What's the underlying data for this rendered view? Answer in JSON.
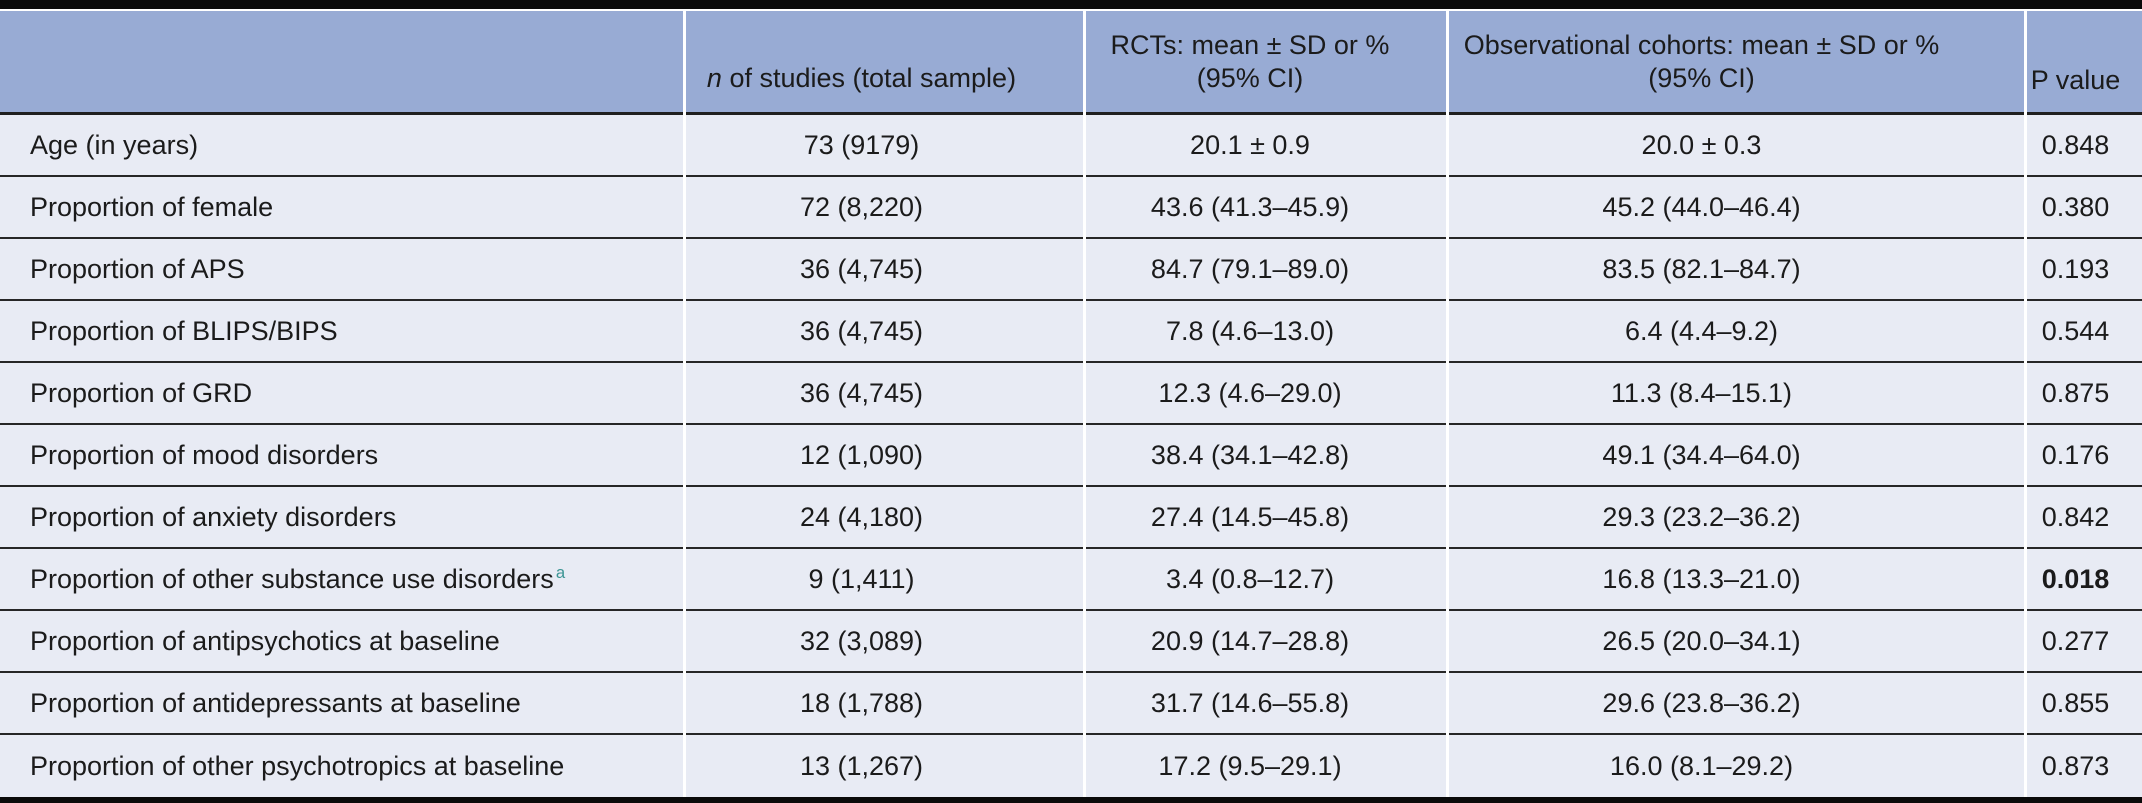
{
  "table": {
    "header": {
      "studies_label_italic": "n",
      "studies_label_rest": " of studies (total sample)",
      "rcts_line1": "RCTs: mean ± SD or %",
      "rcts_line2": "(95% CI)",
      "obs_line1": "Observational cohorts: mean ± SD or %",
      "obs_line2": "(95% CI)",
      "p_label": "P value"
    },
    "rows": [
      {
        "label": "Age (in years)",
        "sup": "",
        "n": "73 (9179)",
        "rct": "20.1 ± 0.9",
        "obs": "20.0 ± 0.3",
        "p": "0.848",
        "p_bold": false
      },
      {
        "label": "Proportion of female",
        "sup": "",
        "n": "72 (8,220)",
        "rct": "43.6 (41.3–45.9)",
        "obs": "45.2 (44.0–46.4)",
        "p": "0.380",
        "p_bold": false
      },
      {
        "label": "Proportion of APS",
        "sup": "",
        "n": "36 (4,745)",
        "rct": "84.7 (79.1–89.0)",
        "obs": "83.5 (82.1–84.7)",
        "p": "0.193",
        "p_bold": false
      },
      {
        "label": "Proportion of BLIPS/BIPS",
        "sup": "",
        "n": "36 (4,745)",
        "rct": "7.8 (4.6–13.0)",
        "obs": "6.4 (4.4–9.2)",
        "p": "0.544",
        "p_bold": false
      },
      {
        "label": "Proportion of GRD",
        "sup": "",
        "n": "36 (4,745)",
        "rct": "12.3 (4.6–29.0)",
        "obs": "11.3 (8.4–15.1)",
        "p": "0.875",
        "p_bold": false
      },
      {
        "label": "Proportion of mood disorders",
        "sup": "",
        "n": "12 (1,090)",
        "rct": "38.4 (34.1–42.8)",
        "obs": "49.1 (34.4–64.0)",
        "p": "0.176",
        "p_bold": false
      },
      {
        "label": "Proportion of anxiety disorders",
        "sup": "",
        "n": "24 (4,180)",
        "rct": "27.4 (14.5–45.8)",
        "obs": "29.3 (23.2–36.2)",
        "p": "0.842",
        "p_bold": false
      },
      {
        "label": "Proportion of other substance use disorders",
        "sup": "a",
        "n": "9 (1,411)",
        "rct": "3.4 (0.8–12.7)",
        "obs": "16.8 (13.3–21.0)",
        "p": "0.018",
        "p_bold": true
      },
      {
        "label": "Proportion of antipsychotics at baseline",
        "sup": "",
        "n": "32 (3,089)",
        "rct": "20.9 (14.7–28.8)",
        "obs": "26.5 (20.0–34.1)",
        "p": "0.277",
        "p_bold": false
      },
      {
        "label": "Proportion of antidepressants at baseline",
        "sup": "",
        "n": "18 (1,788)",
        "rct": "31.7 (14.6–55.8)",
        "obs": "29.6 (23.8–36.2)",
        "p": "0.855",
        "p_bold": false
      },
      {
        "label": "Proportion of other psychotropics at baseline",
        "sup": "",
        "n": "13 (1,267)",
        "rct": "17.2 (9.5–29.1)",
        "obs": "16.0 (8.1–29.2)",
        "p": "0.873",
        "p_bold": false
      }
    ]
  },
  "colors": {
    "header_bg": "#98abd4",
    "row_bg": "#e8ebf4",
    "rule": "#262626",
    "frame": "#0a0a0a",
    "footnote_marker": "#3d9594",
    "text": "#1b1b1b",
    "significant_p_bold": true
  }
}
